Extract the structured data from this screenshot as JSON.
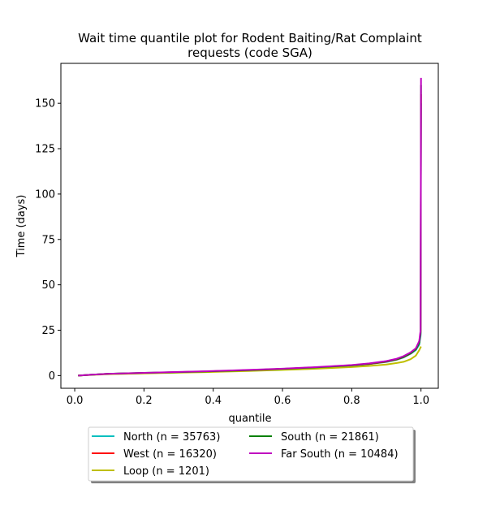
{
  "chart_data": {
    "type": "line",
    "title_line1": "Wait time quantile plot for Rodent Baiting/Rat Complaint",
    "title_line2": "requests (code SGA)",
    "xlabel": "quantile",
    "ylabel": "Time (days)",
    "xlim": [
      -0.04,
      1.05
    ],
    "ylim": [
      -7,
      172
    ],
    "x_ticks": [
      0.0,
      0.2,
      0.4,
      0.6,
      0.8,
      1.0
    ],
    "x_tick_labels": [
      "0.0",
      "0.2",
      "0.4",
      "0.6",
      "0.8",
      "1.0"
    ],
    "y_ticks": [
      0,
      25,
      50,
      75,
      100,
      125,
      150
    ],
    "y_tick_labels": [
      "0",
      "25",
      "50",
      "75",
      "100",
      "125",
      "150"
    ],
    "grid": false,
    "legend_placement": "below plot, two columns",
    "series": [
      {
        "name": "North (n = 35763)",
        "color": "#00bfbf",
        "points": [
          [
            0.01,
            0
          ],
          [
            0.05,
            0.5
          ],
          [
            0.1,
            1
          ],
          [
            0.2,
            1.4
          ],
          [
            0.3,
            1.8
          ],
          [
            0.4,
            2.3
          ],
          [
            0.5,
            2.9
          ],
          [
            0.6,
            3.6
          ],
          [
            0.7,
            4.4
          ],
          [
            0.8,
            5.5
          ],
          [
            0.85,
            6.3
          ],
          [
            0.9,
            7.5
          ],
          [
            0.93,
            8.7
          ],
          [
            0.95,
            10
          ],
          [
            0.97,
            12
          ],
          [
            0.985,
            14
          ],
          [
            0.995,
            17
          ],
          [
            0.999,
            22
          ],
          [
            1.0,
            150
          ]
        ]
      },
      {
        "name": "West (n = 16320)",
        "color": "#ff0000",
        "points": [
          [
            0.01,
            0
          ],
          [
            0.05,
            0.5
          ],
          [
            0.1,
            1
          ],
          [
            0.2,
            1.4
          ],
          [
            0.3,
            1.9
          ],
          [
            0.4,
            2.4
          ],
          [
            0.5,
            3
          ],
          [
            0.6,
            3.7
          ],
          [
            0.7,
            4.5
          ],
          [
            0.8,
            5.6
          ],
          [
            0.85,
            6.4
          ],
          [
            0.9,
            7.7
          ],
          [
            0.93,
            8.9
          ],
          [
            0.95,
            10.2
          ],
          [
            0.97,
            12.2
          ],
          [
            0.985,
            14.5
          ],
          [
            0.995,
            18
          ],
          [
            0.999,
            24
          ],
          [
            1.0,
            155
          ]
        ]
      },
      {
        "name": "Loop (n = 1201)",
        "color": "#bfbf00",
        "points": [
          [
            0.01,
            0
          ],
          [
            0.05,
            0.4
          ],
          [
            0.1,
            0.8
          ],
          [
            0.2,
            1.2
          ],
          [
            0.3,
            1.6
          ],
          [
            0.4,
            2
          ],
          [
            0.5,
            2.5
          ],
          [
            0.6,
            3.1
          ],
          [
            0.7,
            3.8
          ],
          [
            0.8,
            4.7
          ],
          [
            0.85,
            5.3
          ],
          [
            0.9,
            6.1
          ],
          [
            0.93,
            6.9
          ],
          [
            0.95,
            7.6
          ],
          [
            0.97,
            9
          ],
          [
            0.985,
            11
          ],
          [
            0.995,
            14
          ],
          [
            1.0,
            16
          ]
        ]
      },
      {
        "name": "South (n = 21861)",
        "color": "#008000",
        "points": [
          [
            0.01,
            0
          ],
          [
            0.05,
            0.5
          ],
          [
            0.1,
            1
          ],
          [
            0.2,
            1.5
          ],
          [
            0.3,
            1.9
          ],
          [
            0.4,
            2.4
          ],
          [
            0.5,
            3
          ],
          [
            0.6,
            3.7
          ],
          [
            0.7,
            4.5
          ],
          [
            0.8,
            5.6
          ],
          [
            0.85,
            6.5
          ],
          [
            0.9,
            7.8
          ],
          [
            0.93,
            9
          ],
          [
            0.95,
            10.3
          ],
          [
            0.97,
            12.3
          ],
          [
            0.985,
            14.5
          ],
          [
            0.995,
            18
          ],
          [
            0.999,
            23
          ],
          [
            1.0,
            160
          ]
        ]
      },
      {
        "name": "Far South (n = 10484)",
        "color": "#bf00bf",
        "points": [
          [
            0.01,
            0
          ],
          [
            0.05,
            0.5
          ],
          [
            0.1,
            1
          ],
          [
            0.2,
            1.5
          ],
          [
            0.3,
            2
          ],
          [
            0.4,
            2.5
          ],
          [
            0.5,
            3.1
          ],
          [
            0.6,
            3.8
          ],
          [
            0.7,
            4.7
          ],
          [
            0.8,
            5.8
          ],
          [
            0.85,
            6.7
          ],
          [
            0.9,
            8
          ],
          [
            0.93,
            9.3
          ],
          [
            0.95,
            10.7
          ],
          [
            0.97,
            12.8
          ],
          [
            0.985,
            15
          ],
          [
            0.995,
            19
          ],
          [
            0.999,
            25
          ],
          [
            1.0,
            164
          ]
        ]
      }
    ],
    "legend_layout": [
      [
        "North (n = 35763)",
        "South (n = 21861)"
      ],
      [
        "West (n = 16320)",
        "Far South (n = 10484)"
      ],
      [
        "Loop (n = 1201)"
      ]
    ]
  }
}
